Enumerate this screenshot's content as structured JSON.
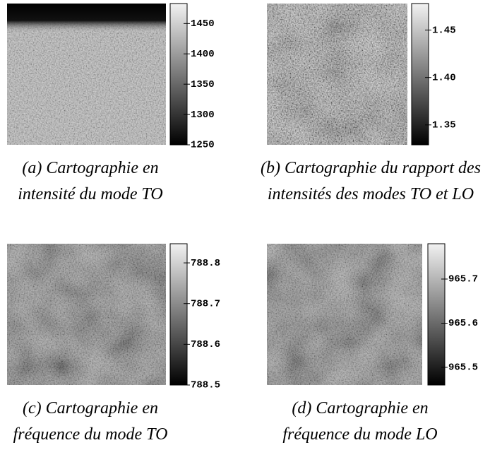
{
  "panels": [
    {
      "caption": [
        "(a) Cartographie en",
        "intensité du mode TO"
      ],
      "colorbar": {
        "lim": [
          1250,
          1483
        ],
        "ticks": [
          1450,
          1400,
          1350,
          1300,
          1250
        ]
      }
    },
    {
      "caption": [
        "(b) Cartographie du rapport des",
        "intensités des modes TO et LO"
      ],
      "colorbar": {
        "lim": [
          1.329,
          1.478
        ],
        "ticks": [
          1.45,
          {
            "value": 1.4,
            "label": "1.40"
          },
          1.35
        ]
      }
    },
    {
      "caption": [
        "(c) Cartographie en",
        "fréquence du mode TO"
      ],
      "colorbar": {
        "lim": [
          788.5,
          788.847
        ],
        "ticks": [
          788.8,
          788.7,
          788.6,
          788.5
        ]
      }
    },
    {
      "caption": [
        "(d) Cartographie en",
        "fréquence du mode LO"
      ],
      "colorbar": {
        "lim": [
          965.46,
          965.78
        ],
        "ticks": [
          965.7,
          965.6,
          965.5
        ]
      }
    }
  ]
}
